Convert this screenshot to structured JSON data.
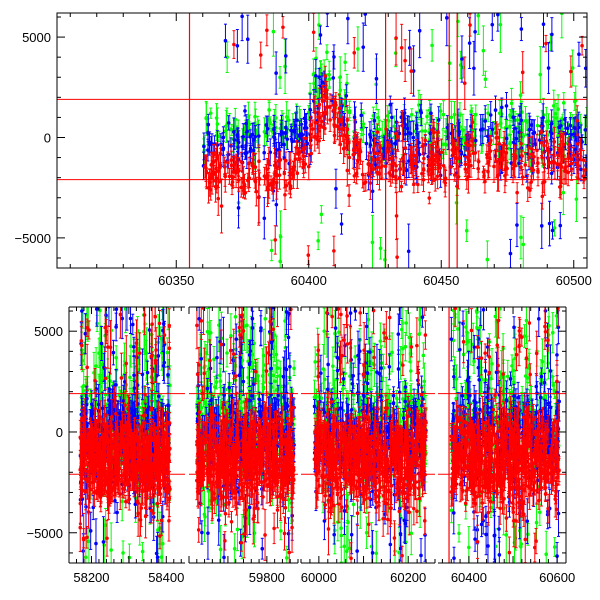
{
  "colors": {
    "blue": "#0000ff",
    "green": "#00ff00",
    "red": "#ff0000",
    "frame": "#000000",
    "refline": "#ff0000"
  },
  "chart_data": [
    {
      "type": "scatter",
      "title": "",
      "xlabel": "",
      "ylabel": "",
      "xlim": [
        60305,
        60505
      ],
      "ylim": [
        -6500,
        6200
      ],
      "xticks": [
        60350,
        60400,
        60450,
        60500
      ],
      "yticks": [
        -5000,
        0,
        5000
      ],
      "grid": false,
      "error_bars": true,
      "reference_hlines": [
        1900,
        -2100
      ],
      "reference_vlines": [
        60355,
        60429,
        60453,
        60456
      ],
      "series": [
        {
          "color": "green",
          "x_range": [
            60360,
            60505
          ],
          "typical_y_range": [
            -1000,
            1500
          ],
          "peak": {
            "x": 60407,
            "y": 2200
          }
        },
        {
          "color": "blue",
          "x_range": [
            60360,
            60505
          ],
          "typical_y_range": [
            -2500,
            1200
          ],
          "peak": {
            "x": 60407,
            "y": 2000
          }
        },
        {
          "color": "red",
          "x_range": [
            60360,
            60505
          ],
          "typical_y_range": [
            -2800,
            800
          ],
          "peak": {
            "x": 60407,
            "y": 1800
          }
        }
      ]
    },
    {
      "type": "scatter",
      "title": "",
      "xlabel": "",
      "ylabel": "",
      "x_axis_segments": [
        [
          58140,
          58450
        ],
        [
          59600,
          59880
        ],
        [
          59960,
          60260
        ],
        [
          60330,
          60620
        ]
      ],
      "ylim": [
        -6500,
        6200
      ],
      "xticks": [
        58200,
        58400,
        59800,
        60000,
        60200,
        60400,
        60600
      ],
      "yticks": [
        -5000,
        0,
        5000
      ],
      "grid": false,
      "error_bars": true,
      "reference_hlines": [
        1900,
        -2100
      ],
      "reference_vlines": [
        60355
      ],
      "observing_seasons": [
        [
          58170,
          58410
        ],
        [
          59620,
          59870
        ],
        [
          59990,
          60240
        ],
        [
          60360,
          60605
        ]
      ],
      "series": [
        {
          "color": "green",
          "typical_y_range": [
            -1500,
            3500
          ]
        },
        {
          "color": "blue",
          "typical_y_range": [
            -2500,
            2000
          ]
        },
        {
          "color": "red",
          "typical_y_range": [
            -4000,
            500
          ]
        }
      ]
    }
  ]
}
